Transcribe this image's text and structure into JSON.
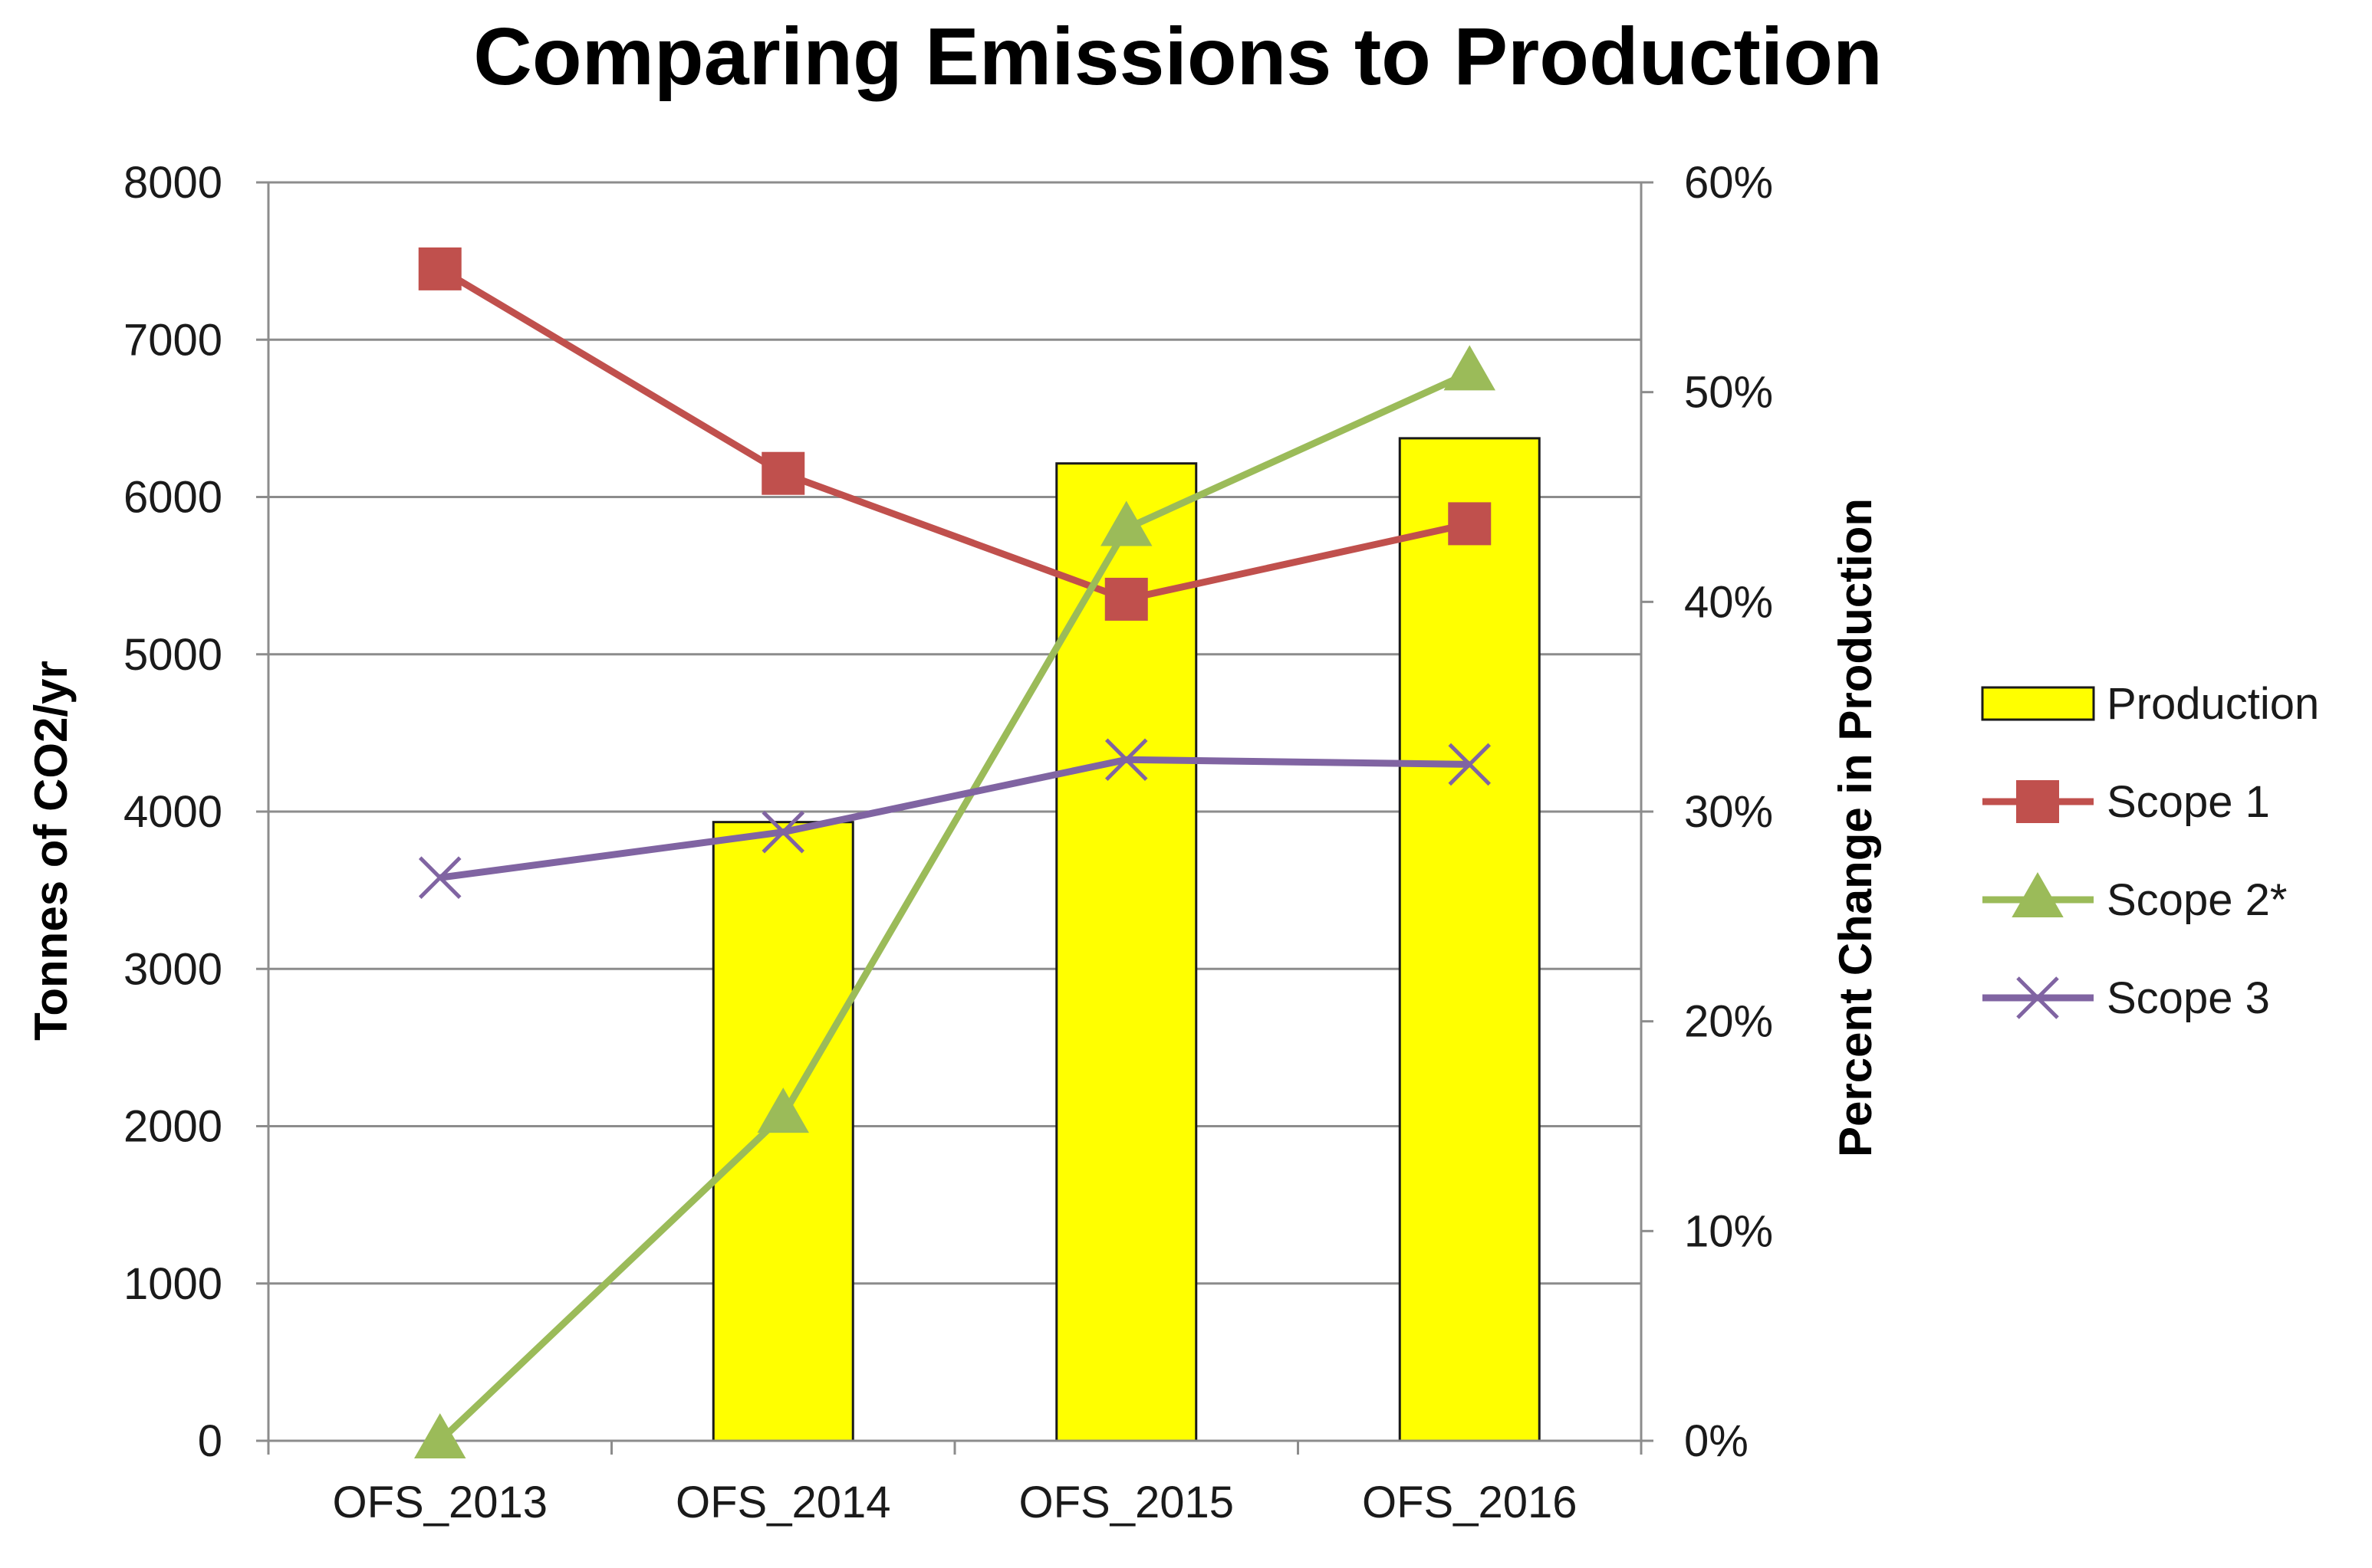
{
  "chart_data": {
    "type": "bar",
    "title": "Comparing Emissions to Production",
    "categories": [
      "OFS_2013",
      "OFS_2014",
      "OFS_2015",
      "OFS_2016"
    ],
    "ylabel": "Tonnes of CO2/yr",
    "y2label": "Percent Change in Production",
    "ylim": [
      0,
      8000
    ],
    "y2lim": [
      0,
      0.6
    ],
    "yticks": [
      "0",
      "1000",
      "2000",
      "3000",
      "4000",
      "5000",
      "6000",
      "7000",
      "8000"
    ],
    "y2ticks": [
      "0%",
      "10%",
      "20%",
      "30%",
      "40%",
      "50%",
      "60%"
    ],
    "grid": true,
    "legend_position": "right",
    "series": [
      {
        "name": "Production",
        "type": "bar",
        "axis": "right",
        "color": "#ffff00",
        "values": [
          0,
          0.295,
          0.466,
          0.478
        ]
      },
      {
        "name": "Scope 1",
        "type": "line",
        "marker": "square",
        "color": "#c0504d",
        "values": [
          7450,
          6150,
          5350,
          5830
        ]
      },
      {
        "name": "Scope 2*",
        "type": "line",
        "marker": "triangle",
        "color": "#9bbb59",
        "values": [
          0,
          2070,
          5800,
          6790
        ]
      },
      {
        "name": "Scope 3",
        "type": "line",
        "marker": "x",
        "color": "#8064a2",
        "values": [
          3580,
          3870,
          4330,
          4300
        ]
      }
    ]
  }
}
